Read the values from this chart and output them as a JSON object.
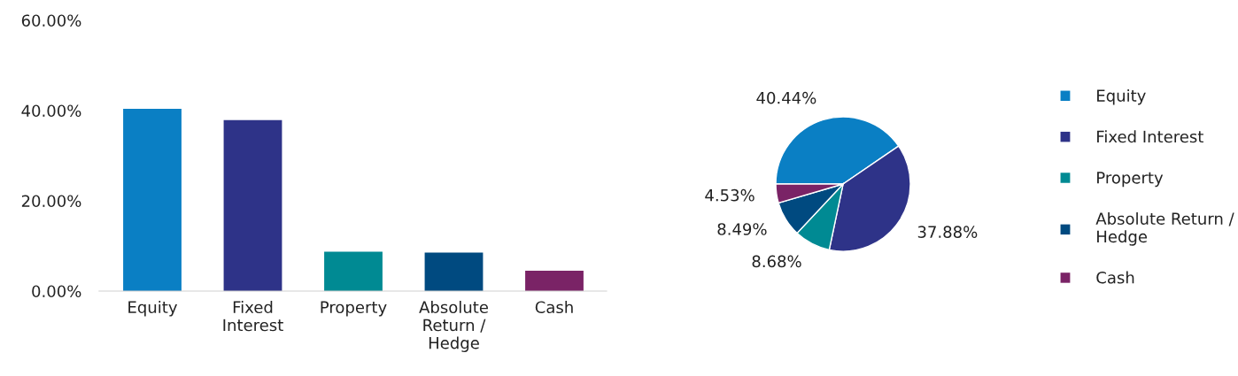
{
  "chart_data": [
    {
      "type": "bar",
      "categories": [
        "Equity",
        "Fixed Interest",
        "Property",
        "Absolute Return / Hedge",
        "Cash"
      ],
      "values": [
        40.4,
        37.9,
        8.7,
        8.5,
        4.5
      ],
      "colors": [
        "#0a7fc4",
        "#2e3388",
        "#008a93",
        "#004a80",
        "#7a2366"
      ],
      "ylim": [
        0,
        60
      ],
      "yticks": [
        {
          "value": 0,
          "label": "0.00%"
        },
        {
          "value": 20,
          "label": "20.00%"
        },
        {
          "value": 40,
          "label": "40.00%"
        },
        {
          "value": 60,
          "label": "60.00%"
        }
      ],
      "grid": false,
      "legend": false
    },
    {
      "type": "pie",
      "categories": [
        "Equity",
        "Fixed Interest",
        "Property",
        "Absolute Return / Hedge",
        "Cash"
      ],
      "values": [
        40.44,
        37.88,
        8.68,
        8.49,
        4.53
      ],
      "colors": [
        "#0a7fc4",
        "#2e3388",
        "#008a93",
        "#004a80",
        "#7a2366"
      ],
      "value_labels": [
        "40.44%",
        "37.88%",
        "8.68%",
        "8.49%",
        "4.53%"
      ],
      "legend": "right"
    }
  ]
}
